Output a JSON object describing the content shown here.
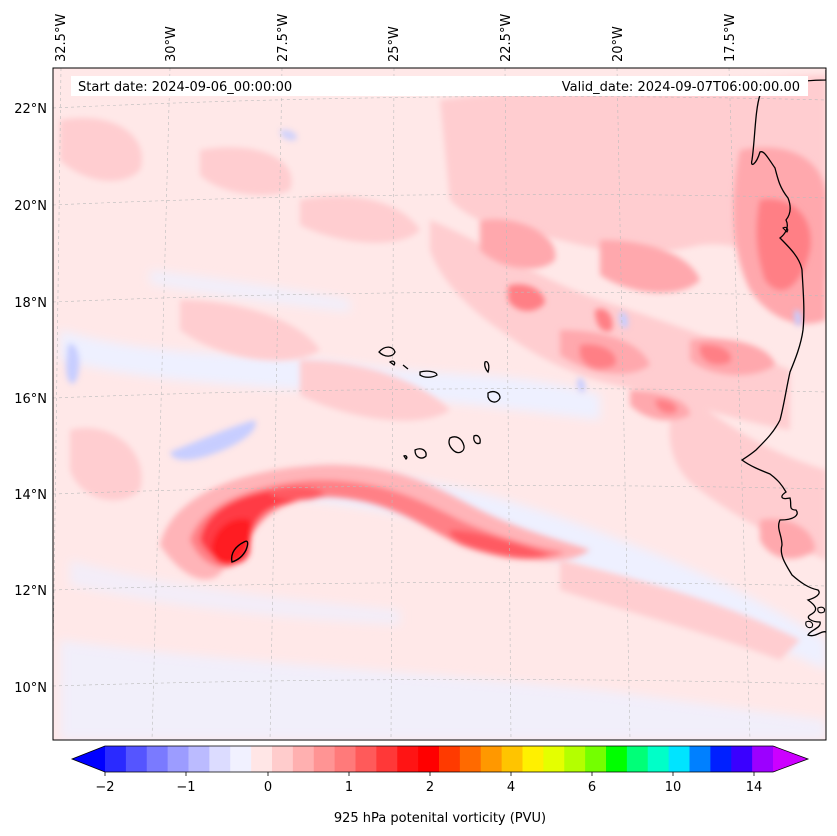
{
  "header": {
    "start_label": "Start date: 2024-09-06_00:00:00",
    "valid_label": "Valid_date: 2024-09-07T06:00:00.00"
  },
  "map": {
    "region": "Eastern tropical Atlantic / Cape Verde / West African coast",
    "lon_labels": [
      "32.5°W",
      "30°W",
      "27.5°W",
      "25°W",
      "22.5°W",
      "20°W",
      "17.5°W"
    ],
    "lat_labels": [
      "22°N",
      "20°N",
      "18°N",
      "16°N",
      "14°N",
      "12°N",
      "10°N"
    ],
    "gridlines": "dashed light grey"
  },
  "colorbar": {
    "title": "925 hPa potenital vorticity (PVU)",
    "tick_labels": [
      "−2",
      "−1",
      "0",
      "1",
      "2",
      "4",
      "6",
      "10",
      "14"
    ],
    "colors": [
      "#0000ff",
      "#2a2aff",
      "#5555ff",
      "#7a7aff",
      "#9c9cff",
      "#bbbbff",
      "#dcdcff",
      "#f1f1ff",
      "#ffe6e6",
      "#ffcccc",
      "#ffb0b0",
      "#ff9494",
      "#ff7a7a",
      "#ff5a5a",
      "#ff3838",
      "#ff1414",
      "#ff0000",
      "#ff3a00",
      "#ff6a00",
      "#ff9800",
      "#ffc400",
      "#fff000",
      "#e4ff00",
      "#b4ff00",
      "#74ff00",
      "#00ff00",
      "#00ff78",
      "#00ffc8",
      "#00e4ff",
      "#0080ff",
      "#0020ff",
      "#3a00ff",
      "#9c00ff",
      "#cc00ff"
    ]
  }
}
